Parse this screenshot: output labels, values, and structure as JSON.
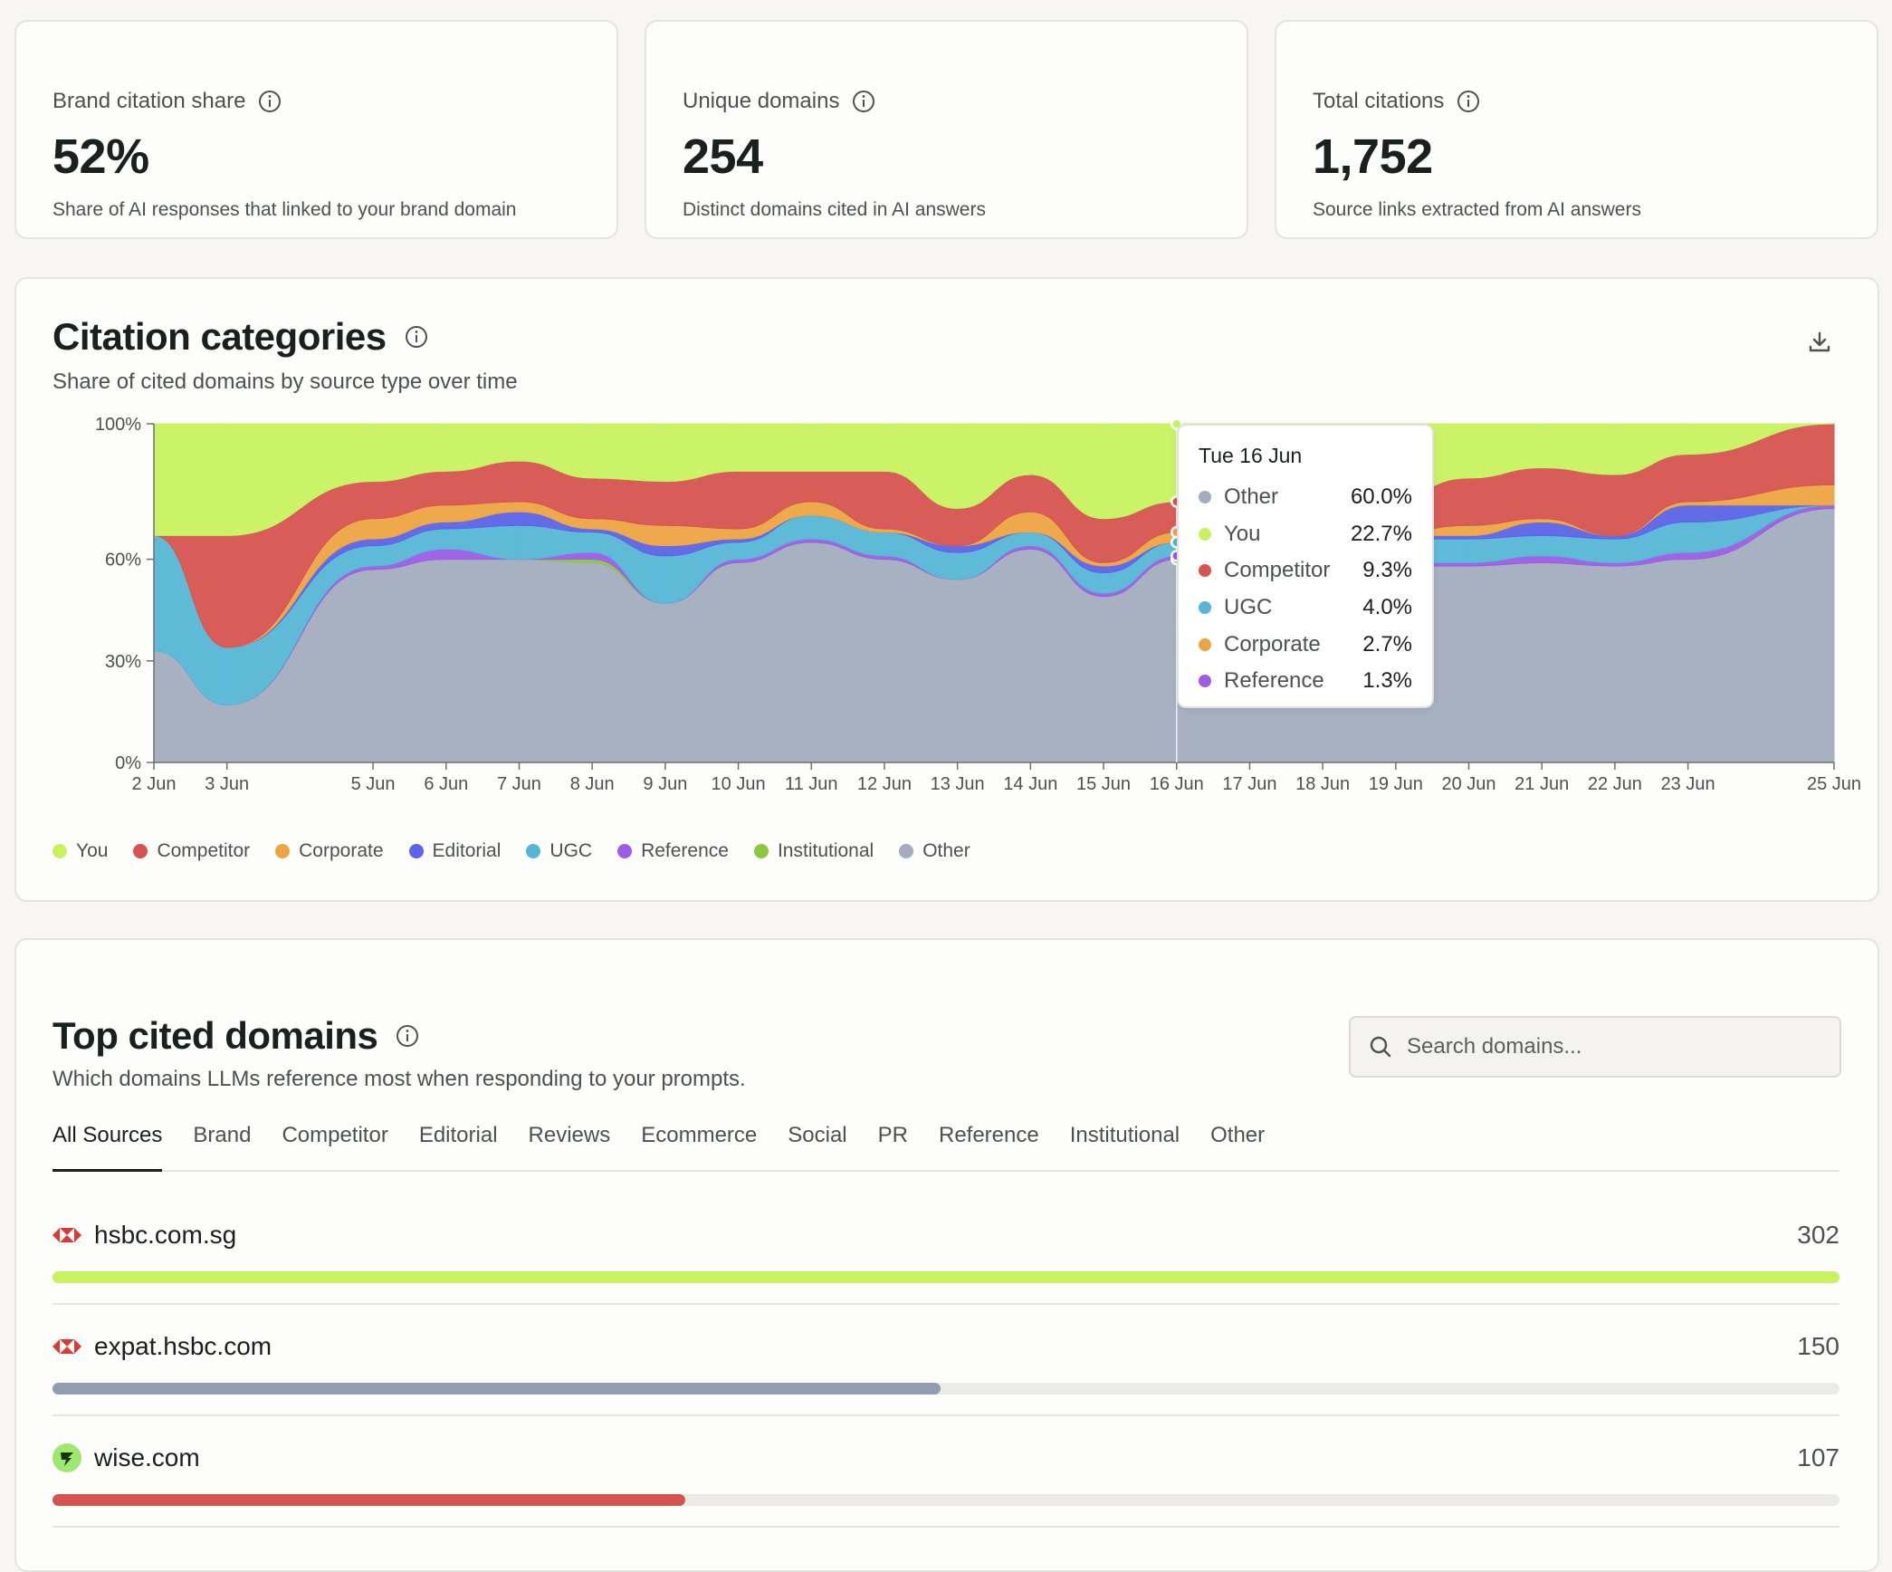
{
  "kpis": [
    {
      "label": "Brand citation share",
      "value": "52%",
      "desc": "Share of AI responses that linked to your brand domain"
    },
    {
      "label": "Unique domains",
      "value": "254",
      "desc": "Distinct domains cited in AI answers"
    },
    {
      "label": "Total citations",
      "value": "1,752",
      "desc": "Source links extracted from AI answers"
    }
  ],
  "chart_section": {
    "title": "Citation categories",
    "subtitle": "Share of cited domains by source type over time"
  },
  "chart_data": {
    "type": "area",
    "stacked": true,
    "x": [
      "2 Jun",
      "3 Jun",
      "5 Jun",
      "6 Jun",
      "7 Jun",
      "8 Jun",
      "9 Jun",
      "10 Jun",
      "11 Jun",
      "12 Jun",
      "13 Jun",
      "14 Jun",
      "15 Jun",
      "16 Jun",
      "17 Jun",
      "18 Jun",
      "19 Jun",
      "20 Jun",
      "21 Jun",
      "22 Jun",
      "23 Jun",
      "25 Jun"
    ],
    "x_days": [
      2,
      3,
      5,
      6,
      7,
      8,
      9,
      10,
      11,
      12,
      13,
      14,
      15,
      16,
      17,
      18,
      19,
      20,
      21,
      22,
      23,
      25
    ],
    "yticks": [
      "0%",
      "30%",
      "60%",
      "100%"
    ],
    "ytick_values": [
      0,
      30,
      60,
      100
    ],
    "ylim": [
      0,
      100
    ],
    "series": [
      {
        "name": "Other",
        "color": "#a3adbf",
        "values": [
          33,
          17,
          57,
          60,
          60,
          59,
          47,
          59,
          65,
          60,
          54,
          63,
          49,
          60,
          62,
          58,
          58,
          58,
          59,
          58,
          60,
          75
        ]
      },
      {
        "name": "Institutional",
        "color": "#8cc63f",
        "values": [
          0,
          0,
          0,
          0,
          0,
          1,
          0,
          0,
          0,
          0,
          0,
          0,
          0,
          0,
          0,
          0,
          0,
          0,
          0,
          0,
          0,
          0
        ]
      },
      {
        "name": "Reference",
        "color": "#9b5de5",
        "values": [
          0,
          0,
          1,
          3,
          0,
          2,
          0,
          1,
          1,
          1,
          0,
          1,
          1,
          1,
          1,
          1,
          1,
          1,
          2,
          1,
          2,
          1
        ]
      },
      {
        "name": "UGC",
        "color": "#56b6d6",
        "values": [
          34,
          17,
          6,
          6,
          10,
          6,
          14,
          5,
          7,
          7,
          8,
          4,
          6,
          4,
          6,
          5,
          7,
          7,
          6,
          7,
          9,
          0
        ]
      },
      {
        "name": "Editorial",
        "color": "#5b63e8",
        "values": [
          0,
          0,
          2,
          2,
          4,
          1,
          3,
          1,
          0,
          0,
          2,
          0,
          2,
          0,
          1,
          1,
          1,
          1,
          4,
          1,
          5,
          0
        ]
      },
      {
        "name": "Corporate",
        "color": "#eea443",
        "values": [
          0,
          0,
          6,
          5,
          3,
          3,
          6,
          3,
          4,
          1,
          0,
          6,
          1,
          3,
          1,
          1,
          1,
          3,
          1,
          0,
          1,
          6
        ]
      },
      {
        "name": "Competitor",
        "color": "#d6544f",
        "values": [
          0,
          33,
          11,
          10,
          12,
          12,
          13,
          17,
          9,
          17,
          11,
          11,
          13,
          9,
          12,
          12,
          11,
          14,
          15,
          18,
          14,
          18
        ]
      },
      {
        "name": "You",
        "color": "#c8f260",
        "values": [
          33,
          33,
          17,
          14,
          11,
          17,
          17,
          14,
          14,
          15,
          25,
          15,
          28,
          23,
          17,
          23,
          21,
          16,
          13,
          15,
          9,
          0
        ]
      }
    ],
    "tooltip": {
      "date": "Tue 16 Jun",
      "rows": [
        {
          "name": "Other",
          "value": "60.0%",
          "color": "#a3adbf"
        },
        {
          "name": "You",
          "value": "22.7%",
          "color": "#c8f260"
        },
        {
          "name": "Competitor",
          "value": "9.3%",
          "color": "#d6544f"
        },
        {
          "name": "UGC",
          "value": "4.0%",
          "color": "#56b6d6"
        },
        {
          "name": "Corporate",
          "value": "2.7%",
          "color": "#eea443"
        },
        {
          "name": "Reference",
          "value": "1.3%",
          "color": "#9b5de5"
        }
      ]
    },
    "legend": [
      {
        "name": "You",
        "color": "#c8f260"
      },
      {
        "name": "Competitor",
        "color": "#d6544f"
      },
      {
        "name": "Corporate",
        "color": "#eea443"
      },
      {
        "name": "Editorial",
        "color": "#5b63e8"
      },
      {
        "name": "UGC",
        "color": "#56b6d6"
      },
      {
        "name": "Reference",
        "color": "#9b5de5"
      },
      {
        "name": "Institutional",
        "color": "#8cc63f"
      },
      {
        "name": "Other",
        "color": "#a3adbf"
      }
    ]
  },
  "domains_section": {
    "title": "Top cited domains",
    "subtitle": "Which domains LLMs reference most when responding to your prompts.",
    "search_placeholder": "Search domains...",
    "tabs": [
      "All Sources",
      "Brand",
      "Competitor",
      "Editorial",
      "Reviews",
      "Ecommerce",
      "Social",
      "PR",
      "Reference",
      "Institutional",
      "Other"
    ],
    "active_tab": "All Sources",
    "rows": [
      {
        "domain": "hsbc.com.sg",
        "count": "302",
        "fraction": 1.0,
        "color": "#c8f260",
        "icon": "hsbc-logo-icon"
      },
      {
        "domain": "expat.hsbc.com",
        "count": "150",
        "fraction": 0.497,
        "color": "#939db2",
        "icon": "hsbc-logo-icon"
      },
      {
        "domain": "wise.com",
        "count": "107",
        "fraction": 0.354,
        "color": "#d6544f",
        "icon": "wise-logo-icon"
      }
    ]
  }
}
